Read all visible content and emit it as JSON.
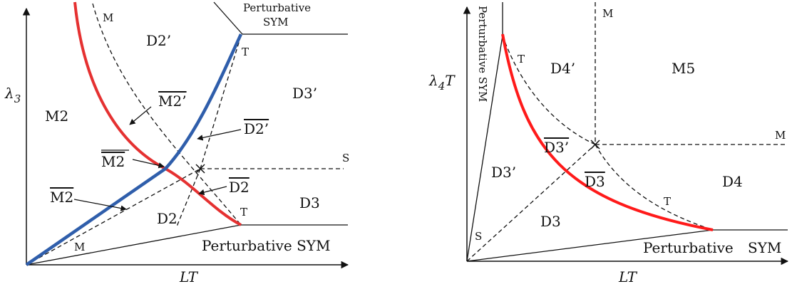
{
  "colors": {
    "line": "#111111",
    "red_curve": "#e53131",
    "blue_curve": "#2f5eab"
  },
  "left_diagram": {
    "y_axis_label": {
      "main": "λ",
      "sub": "3"
    },
    "x_axis_label": "LT",
    "perturbative_top": [
      "Perturbative",
      "SYM"
    ],
    "perturbative_bottom": "Perturbative SYM",
    "regions": {
      "d2_prime": "D2’",
      "d3_prime": "D3’",
      "m2": "M2",
      "d2": "D2",
      "d3": "D3"
    },
    "point_labels": {
      "m_top": "M",
      "t_top": "T",
      "s": "S",
      "t_bottom": "T",
      "m_bottom": "M"
    },
    "arrow_labels": {
      "m2bar_prime": "M2’",
      "d2bar_prime": "D2’",
      "m2doublebar": "M2",
      "d2bar": "D2",
      "m2bar": "M2"
    }
  },
  "right_diagram": {
    "y_axis_label": {
      "main": "λ",
      "sub": "4",
      "tail": "T"
    },
    "x_axis_label": "LT",
    "vertical_text": "Perturbative SYM",
    "perturbative_bottom": [
      "Perturbative",
      "SYM"
    ],
    "regions": {
      "d4_prime": "D4’",
      "m5": "M5",
      "d3bar_prime": "D3’",
      "d3_prime": "D3’",
      "d3bar": "D3",
      "d4": "D4",
      "d3": "D3"
    },
    "point_labels": {
      "t_top": "T",
      "m_top": "M",
      "m_right": "M",
      "t_bottom": "T",
      "s": "S"
    }
  }
}
